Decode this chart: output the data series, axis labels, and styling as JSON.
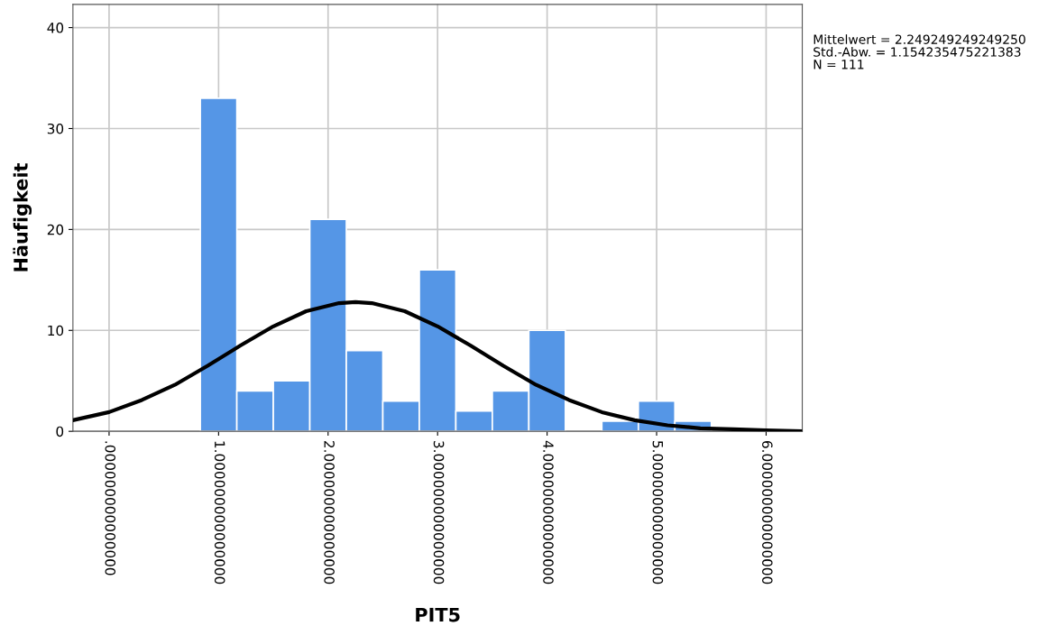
{
  "chart_data": {
    "type": "histogram",
    "xlabel": "PIT5",
    "ylabel": "Häufigkeit",
    "bins": [
      0.8333,
      1.1667,
      1.5,
      1.8333,
      2.1667,
      2.5,
      2.8333,
      3.1667,
      3.5,
      3.8333,
      4.1667,
      4.5,
      4.8333,
      5.1667,
      5.5
    ],
    "values": [
      33,
      4,
      5,
      21,
      8,
      3,
      16,
      2,
      4,
      10,
      0,
      1,
      3,
      1
    ],
    "color": "#5596e6",
    "series": [
      {
        "type": "line",
        "color": "#000000",
        "x": [
          -0.33,
          0,
          0.3,
          0.6,
          0.9,
          1.2,
          1.5,
          1.8,
          2.1,
          2.25,
          2.4,
          2.7,
          3.0,
          3.3,
          3.6,
          3.9,
          4.2,
          4.5,
          4.8,
          5.1,
          5.4,
          5.7,
          6.0,
          6.33
        ],
        "values": [
          1.1,
          1.9,
          3.1,
          4.6,
          6.5,
          8.5,
          10.4,
          11.9,
          12.7,
          12.8,
          12.7,
          11.9,
          10.4,
          8.5,
          6.5,
          4.6,
          3.1,
          1.9,
          1.1,
          0.6,
          0.3,
          0.2,
          0.1,
          0
        ]
      }
    ],
    "xlim": [
      -0.33,
      6.33
    ],
    "ylim": [
      0,
      42.3
    ],
    "xticks": [
      {
        "value": 0,
        "label": ".000000000000000"
      },
      {
        "value": 1,
        "label": "1.000000000000000"
      },
      {
        "value": 2,
        "label": "2.000000000000000"
      },
      {
        "value": 3,
        "label": "3.000000000000000"
      },
      {
        "value": 4,
        "label": "4.000000000000000"
      },
      {
        "value": 5,
        "label": "5.000000000000000"
      },
      {
        "value": 6,
        "label": "6.000000000000000"
      }
    ],
    "yticks": [
      0,
      10,
      20,
      30,
      40
    ],
    "grid": true,
    "annotations": [
      "Mittelwert = 2.249249249249250",
      "Std.-Abw. = 1.154235475221383",
      "N = 111"
    ]
  }
}
